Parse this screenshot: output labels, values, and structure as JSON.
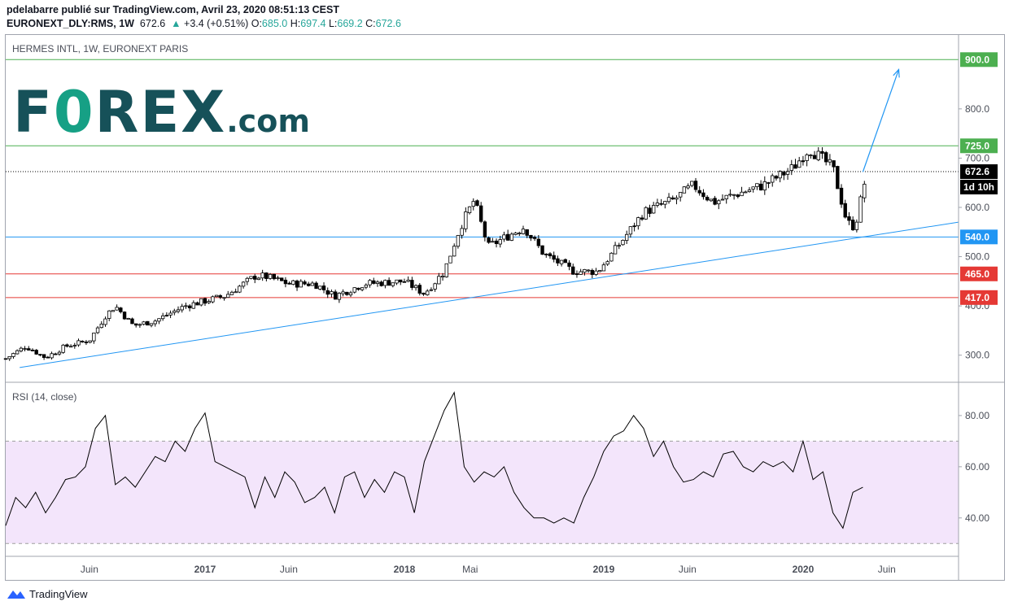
{
  "header": {
    "author_line": "pdelabarre publié sur TradingView.com, Avril 23, 2020 08:51:13 CEST",
    "symbol": "EURONEXT_DLY:RMS, 1W",
    "last": "672.6",
    "change": "+3.4 (+0.51%)",
    "o_label": "O:",
    "o": "685.0",
    "h_label": "H:",
    "h": "697.4",
    "l_label": "L:",
    "l": "669.2",
    "c_label": "C:",
    "c": "672.6"
  },
  "main_pane": {
    "title": "HERMES INTL, 1W, EURONEXT PARIS"
  },
  "logo": {
    "text_prefix": "F",
    "text_o": "0",
    "text_rest": "REX",
    "text_dotcom": ".com"
  },
  "rsi_pane": {
    "title": "RSI (14, close)"
  },
  "footer": {
    "brand": "TradingView"
  },
  "colors": {
    "up": "#26a69a",
    "green_level": "#4caf50",
    "red_level": "#e53935",
    "blue_level": "#2196f3",
    "rsi_line": "#000000",
    "rsi_band": "#f3e5fb",
    "logo": "#165159",
    "logo_accent": "#16a085"
  },
  "chart_data": [
    {
      "type": "candlestick",
      "title": "HERMES INTL, 1W, EURONEXT PARIS",
      "y_scale": "linear",
      "ylim": [
        245,
        950
      ],
      "y_ticks": [
        "300.0",
        "400.0",
        "500.0",
        "600.0",
        "700.0",
        "800.0"
      ],
      "x_ticks": [
        "Juin",
        "2017",
        "Juin",
        "2018",
        "Mai",
        "2019",
        "Juin",
        "2020",
        "Juin"
      ],
      "x_tick_positions": [
        2016.42,
        2017.0,
        2017.42,
        2018.0,
        2018.33,
        2019.0,
        2019.42,
        2020.0,
        2020.42
      ],
      "x_range": [
        2016.0,
        2020.78
      ],
      "horizontal_levels": [
        {
          "value": 900.0,
          "label": "900.0",
          "color": "green"
        },
        {
          "value": 725.0,
          "label": "725.0",
          "color": "green"
        },
        {
          "value": 540.0,
          "label": "540.0",
          "color": "blue"
        },
        {
          "value": 465.0,
          "label": "465.0",
          "color": "red"
        },
        {
          "value": 417.0,
          "label": "417.0",
          "color": "red"
        }
      ],
      "last_price": {
        "value": 672.6,
        "label": "672.6",
        "countdown": "1d 10h"
      },
      "trendline": {
        "points": [
          [
            2016.07,
            275
          ],
          [
            2020.78,
            570
          ]
        ]
      },
      "projection_arrow": {
        "points": [
          [
            2020.3,
            672
          ],
          [
            2020.48,
            880
          ]
        ]
      },
      "close_path": [
        [
          2016.0,
          293
        ],
        [
          2016.1,
          318
        ],
        [
          2016.2,
          295
        ],
        [
          2016.3,
          318
        ],
        [
          2016.42,
          330
        ],
        [
          2016.5,
          380
        ],
        [
          2016.55,
          400
        ],
        [
          2016.64,
          360
        ],
        [
          2016.75,
          370
        ],
        [
          2016.9,
          400
        ],
        [
          2017.0,
          410
        ],
        [
          2017.1,
          420
        ],
        [
          2017.25,
          460
        ],
        [
          2017.3,
          460
        ],
        [
          2017.42,
          445
        ],
        [
          2017.55,
          445
        ],
        [
          2017.65,
          420
        ],
        [
          2017.8,
          445
        ],
        [
          2018.0,
          450
        ],
        [
          2018.1,
          425
        ],
        [
          2018.2,
          470
        ],
        [
          2018.28,
          560
        ],
        [
          2018.35,
          615
        ],
        [
          2018.42,
          520
        ],
        [
          2018.6,
          560
        ],
        [
          2018.7,
          505
        ],
        [
          2018.85,
          470
        ],
        [
          2018.97,
          470
        ],
        [
          2019.05,
          510
        ],
        [
          2019.2,
          590
        ],
        [
          2019.35,
          615
        ],
        [
          2019.45,
          645
        ],
        [
          2019.55,
          610
        ],
        [
          2019.65,
          625
        ],
        [
          2019.8,
          645
        ],
        [
          2019.95,
          680
        ],
        [
          2020.03,
          720
        ],
        [
          2020.15,
          680
        ],
        [
          2020.22,
          570
        ],
        [
          2020.26,
          560
        ],
        [
          2020.32,
          672
        ]
      ]
    },
    {
      "type": "line",
      "title": "RSI (14, close)",
      "ylim": [
        25,
        93
      ],
      "y_ticks": [
        "40.00",
        "60.00",
        "80.00"
      ],
      "band": [
        30,
        70
      ],
      "x": [
        2016.0,
        2016.05,
        2016.1,
        2016.15,
        2016.2,
        2016.25,
        2016.3,
        2016.35,
        2016.4,
        2016.45,
        2016.5,
        2016.55,
        2016.6,
        2016.65,
        2016.7,
        2016.75,
        2016.8,
        2016.85,
        2016.9,
        2016.95,
        2017.0,
        2017.05,
        2017.1,
        2017.15,
        2017.2,
        2017.25,
        2017.3,
        2017.35,
        2017.4,
        2017.45,
        2017.5,
        2017.55,
        2017.6,
        2017.65,
        2017.7,
        2017.75,
        2017.8,
        2017.85,
        2017.9,
        2017.95,
        2018.0,
        2018.05,
        2018.1,
        2018.15,
        2018.2,
        2018.25,
        2018.3,
        2018.35,
        2018.4,
        2018.45,
        2018.5,
        2018.55,
        2018.6,
        2018.65,
        2018.7,
        2018.75,
        2018.8,
        2018.85,
        2018.9,
        2018.95,
        2019.0,
        2019.05,
        2019.1,
        2019.15,
        2019.2,
        2019.25,
        2019.3,
        2019.35,
        2019.4,
        2019.45,
        2019.5,
        2019.55,
        2019.6,
        2019.65,
        2019.7,
        2019.75,
        2019.8,
        2019.85,
        2019.9,
        2019.95,
        2020.0,
        2020.05,
        2020.1,
        2020.15,
        2020.2,
        2020.25,
        2020.3
      ],
      "values": [
        37,
        48,
        44,
        50,
        42,
        48,
        55,
        56,
        60,
        75,
        80,
        53,
        56,
        52,
        58,
        64,
        62,
        70,
        66,
        75,
        81,
        62,
        60,
        58,
        56,
        44,
        56,
        48,
        58,
        54,
        46,
        48,
        52,
        42,
        56,
        58,
        48,
        55,
        50,
        58,
        56,
        42,
        62,
        72,
        82,
        89,
        60,
        54,
        58,
        56,
        60,
        50,
        44,
        40,
        40,
        38,
        40,
        38,
        48,
        56,
        66,
        72,
        74,
        80,
        75,
        64,
        70,
        60,
        54,
        55,
        58,
        56,
        65,
        66,
        60,
        58,
        62,
        60,
        62,
        58,
        70,
        55,
        58,
        42,
        36,
        50,
        52
      ]
    }
  ]
}
